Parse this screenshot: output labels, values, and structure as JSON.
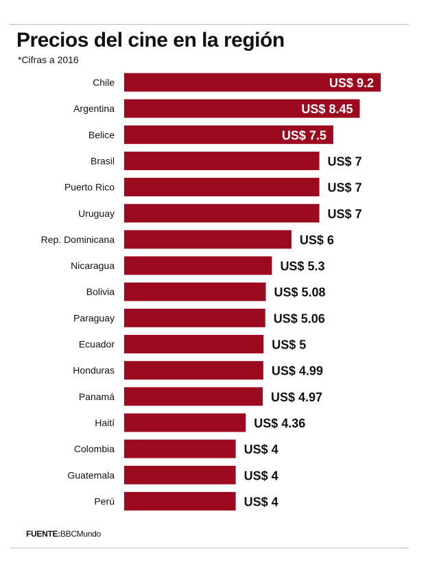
{
  "header": {
    "title": "Precios del cine en la región",
    "subtitle": "*Cifras a 2016"
  },
  "footer": {
    "source_label": "FUENTE:",
    "source_value": "BBCMundo"
  },
  "colors": {
    "bar": "#9b0a1f",
    "inside_label": "#ffffff",
    "outside_label": "#111111"
  },
  "chart_data": {
    "type": "bar",
    "orientation": "horizontal",
    "title": "Precios del cine en la región",
    "subtitle": "*Cifras a 2016",
    "categories": [
      "Chile",
      "Argentina",
      "Belice",
      "Brasil",
      "Puerto Rico",
      "Uruguay",
      "Rep. Dominicana",
      "Nicaragua",
      "Bolivia",
      "Paraguay",
      "Ecuador",
      "Honduras",
      "Panamá",
      "Haití",
      "Colombia",
      "Guatemala",
      "Perú"
    ],
    "values": [
      9.2,
      8.45,
      7.5,
      7,
      7,
      7,
      6,
      5.3,
      5.08,
      5.06,
      5,
      4.99,
      4.97,
      4.36,
      4,
      4,
      4
    ],
    "labels": [
      "US$ 9.2",
      "US$ 8.45",
      "US$ 7.5",
      "US$ 7",
      "US$ 7",
      "US$ 7",
      "US$ 6",
      "US$ 5.3",
      "US$ 5.08",
      "US$ 5.06",
      "US$ 5",
      "US$ 4.99",
      "US$ 4.97",
      "US$ 4.36",
      "US$ 4",
      "US$ 4",
      "US$ 4"
    ],
    "label_inside_count": 3,
    "xlim": [
      0,
      9.2
    ],
    "grid": false,
    "legend": "none"
  }
}
